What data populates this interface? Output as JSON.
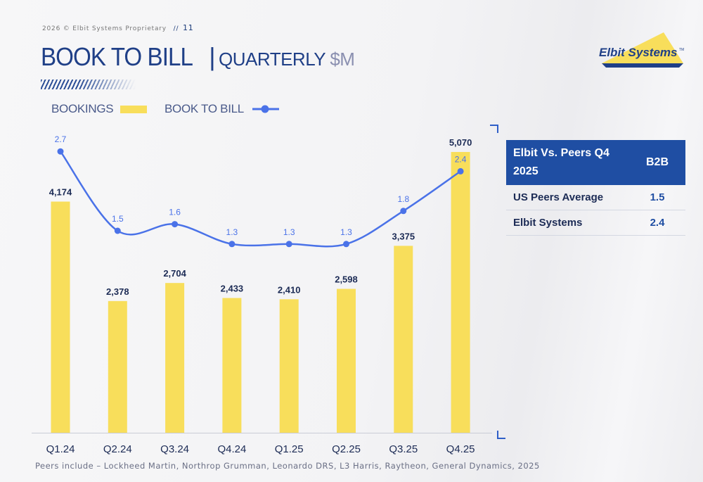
{
  "header": {
    "copyright": "2026 © Elbit Systems Proprietary",
    "separator": "//",
    "page_number": "11",
    "title_main": "BOOK TO BILL",
    "title_bar": "|",
    "title_sub": "QUARTERLY",
    "title_currency": "$M"
  },
  "logo": {
    "text": "Elbit Systems",
    "tm": "TM"
  },
  "legend": {
    "bookings": "BOOKINGS",
    "b2b": "BOOK TO BILL"
  },
  "chart_data": {
    "type": "bar",
    "title": "BOOK TO BILL | QUARTERLY $M",
    "categories": [
      "Q1.24",
      "Q2.24",
      "Q3.24",
      "Q4.24",
      "Q1.25",
      "Q2.25",
      "Q3.25",
      "Q4.25"
    ],
    "series": [
      {
        "name": "BOOKINGS",
        "type": "bar",
        "values": [
          4174,
          2378,
          2704,
          2433,
          2410,
          2598,
          3375,
          5070
        ],
        "labels": [
          "4,174",
          "2,378",
          "2,704",
          "2,433",
          "2,410",
          "2,598",
          "3,375",
          "5,070"
        ]
      },
      {
        "name": "BOOK TO BILL",
        "type": "line",
        "values": [
          2.7,
          1.5,
          1.6,
          1.3,
          1.3,
          1.3,
          1.8,
          2.4
        ],
        "labels": [
          "2.7",
          "1.5",
          "1.6",
          "1.3",
          "1.3",
          "1.3",
          "1.8",
          "2.4"
        ]
      }
    ],
    "bar_ylim": [
      0,
      5400
    ],
    "line_ylim": [
      1.0,
      3.0
    ],
    "grid": false,
    "legend_position": "top-left",
    "colors": {
      "bar": "#f8de5b",
      "line": "#4a72e8",
      "text": "#1c2b55"
    }
  },
  "peers_table": {
    "header_label": "Elbit Vs. Peers Q4 2025",
    "header_value": "B2B",
    "rows": [
      {
        "label": "US Peers Average",
        "value": "1.5"
      },
      {
        "label": "Elbit Systems",
        "value": "2.4"
      }
    ]
  },
  "footnote": "Peers include – Lockheed Martin, Northrop Grumman, Leonardo DRS, L3 Harris, Raytheon, General Dynamics, 2025"
}
